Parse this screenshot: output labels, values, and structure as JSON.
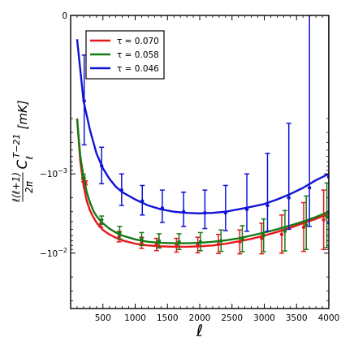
{
  "chart_data": {
    "type": "line",
    "title": "",
    "xlabel": "ℓ",
    "ylabel": "ℓ(ℓ+1)/2π C_ℓ^{T-21} [mK]",
    "ylabel_parts": {
      "frac_num": "ℓ(ℓ+1)",
      "frac_den": "2π",
      "symbol": "C",
      "sup": "T−21",
      "sub": "ℓ",
      "unit": "[mK]"
    },
    "x_scale": "linear",
    "y_scale": "symlog",
    "xlim": [
      0,
      4000
    ],
    "ylim": [
      -0.05,
      0
    ],
    "xticks": [
      500,
      1000,
      1500,
      2000,
      2500,
      3000,
      3500,
      4000
    ],
    "xtick_labels": [
      "500",
      "1000",
      "1500",
      "2000",
      "2500",
      "3000",
      "3500",
      "4000"
    ],
    "yticks": [
      0,
      -0.001,
      -0.01
    ],
    "ytick_labels": [
      "0",
      "−10^−3",
      "−10^−2"
    ],
    "grid": false,
    "legend_position": "top-left",
    "series": [
      {
        "name": "τ = 0.070",
        "color": "#e8161b",
        "x": [
          100,
          150,
          200,
          250,
          300,
          350,
          400,
          450,
          500,
          600,
          700,
          800,
          1000,
          1200,
          1400,
          1600,
          1800,
          2000,
          2200,
          2400,
          2600,
          2800,
          3000,
          3200,
          3400,
          3600,
          3800,
          4000
        ],
        "values": [
          -0.0002,
          -0.0007,
          -0.0014,
          -0.0022,
          -0.0029,
          -0.0035,
          -0.0041,
          -0.0046,
          -0.0051,
          -0.0058,
          -0.0064,
          -0.0069,
          -0.0076,
          -0.008,
          -0.0082,
          -0.0083,
          -0.0083,
          -0.0082,
          -0.008,
          -0.0076,
          -0.0071,
          -0.0066,
          -0.006,
          -0.0054,
          -0.0048,
          -0.0042,
          -0.0037,
          -0.0032
        ],
        "points": [
          {
            "x": 200,
            "y": -0.00119,
            "lo": -0.00126,
            "hi": -0.00113
          },
          {
            "x": 230,
            "y": -0.0013,
            "lo": -0.00138,
            "hi": -0.00122
          },
          {
            "x": 470,
            "y": -0.00424,
            "lo": -0.0047,
            "hi": -0.0038
          },
          {
            "x": 750,
            "y": -0.0062,
            "lo": -0.0072,
            "hi": -0.0053
          },
          {
            "x": 1100,
            "y": -0.0074,
            "lo": -0.0087,
            "hi": -0.0063
          },
          {
            "x": 1330,
            "y": -0.0078,
            "lo": -0.0093,
            "hi": -0.0065
          },
          {
            "x": 1640,
            "y": -0.008,
            "lo": -0.0097,
            "hi": -0.0065
          },
          {
            "x": 1970,
            "y": -0.0079,
            "lo": -0.0099,
            "hi": -0.0063
          },
          {
            "x": 2290,
            "y": -0.0077,
            "lo": -0.0101,
            "hi": -0.0058
          },
          {
            "x": 2620,
            "y": -0.0072,
            "lo": -0.0102,
            "hi": -0.0051
          },
          {
            "x": 2960,
            "y": -0.0065,
            "lo": -0.0102,
            "hi": -0.0042
          },
          {
            "x": 3270,
            "y": -0.0058,
            "lo": -0.01,
            "hi": -0.0033
          },
          {
            "x": 3610,
            "y": -0.0047,
            "lo": -0.0095,
            "hi": -0.0023
          },
          {
            "x": 3920,
            "y": -0.0038,
            "lo": -0.009,
            "hi": -0.0016
          }
        ]
      },
      {
        "name": "τ = 0.058",
        "color": "#157a16",
        "x": [
          100,
          150,
          200,
          250,
          300,
          350,
          400,
          450,
          500,
          600,
          700,
          800,
          1000,
          1200,
          1400,
          1600,
          1800,
          2000,
          2200,
          2400,
          2600,
          2800,
          3000,
          3200,
          3400,
          3600,
          3800,
          4000
        ],
        "values": [
          -0.0002,
          -0.0006,
          -0.0011,
          -0.0017,
          -0.0023,
          -0.0029,
          -0.0034,
          -0.0038,
          -0.0042,
          -0.0049,
          -0.0055,
          -0.006,
          -0.0067,
          -0.0072,
          -0.0074,
          -0.0075,
          -0.0075,
          -0.0074,
          -0.0072,
          -0.0069,
          -0.0065,
          -0.006,
          -0.0055,
          -0.005,
          -0.0045,
          -0.004,
          -0.0035,
          -0.003
        ],
        "points": [
          {
            "x": 200,
            "y": -0.00108,
            "lo": -0.00115,
            "hi": -0.00101
          },
          {
            "x": 480,
            "y": -0.0038,
            "lo": -0.0043,
            "hi": -0.0034
          },
          {
            "x": 760,
            "y": -0.0055,
            "lo": -0.0066,
            "hi": -0.0046
          },
          {
            "x": 1100,
            "y": -0.0066,
            "lo": -0.008,
            "hi": -0.0055
          },
          {
            "x": 1370,
            "y": -0.007,
            "lo": -0.0086,
            "hi": -0.0057
          },
          {
            "x": 1680,
            "y": -0.0072,
            "lo": -0.009,
            "hi": -0.0057
          },
          {
            "x": 2010,
            "y": -0.0072,
            "lo": -0.0093,
            "hi": -0.0055
          },
          {
            "x": 2330,
            "y": -0.007,
            "lo": -0.0095,
            "hi": -0.0051
          },
          {
            "x": 2660,
            "y": -0.0066,
            "lo": -0.0096,
            "hi": -0.0045
          },
          {
            "x": 2990,
            "y": -0.006,
            "lo": -0.0096,
            "hi": -0.0037
          },
          {
            "x": 3320,
            "y": -0.0053,
            "lo": -0.0094,
            "hi": -0.0029
          },
          {
            "x": 3650,
            "y": -0.0044,
            "lo": -0.009,
            "hi": -0.0019
          },
          {
            "x": 3970,
            "y": -0.0035,
            "lo": -0.0085,
            "hi": -0.0013
          }
        ]
      },
      {
        "name": "τ = 0.046",
        "color": "#1212d6",
        "x": [
          100,
          200,
          300,
          400,
          500,
          600,
          700,
          800,
          1000,
          1200,
          1400,
          1600,
          1800,
          2000,
          2200,
          2400,
          2600,
          2800,
          3000,
          3200,
          3400,
          3600,
          3800,
          4000
        ],
        "values": [
          -3e-05,
          -0.00012,
          -0.00028,
          -0.00055,
          -0.00085,
          -0.00115,
          -0.00145,
          -0.0017,
          -0.0021,
          -0.0025,
          -0.0028,
          -0.003,
          -0.0031,
          -0.00315,
          -0.0031,
          -0.003,
          -0.0028,
          -0.0026,
          -0.0024,
          -0.0021,
          -0.0018,
          -0.0015,
          -0.0012,
          -0.001
        ],
        "points": [
          {
            "x": 210,
            "y": -0.00012,
            "lo": -0.00043,
            "hi": -5e-05
          },
          {
            "x": 480,
            "y": -0.00079,
            "lo": -0.00133,
            "hi": -0.00046
          },
          {
            "x": 790,
            "y": -0.0016,
            "lo": -0.0025,
            "hi": -0.001
          },
          {
            "x": 1110,
            "y": -0.0022,
            "lo": -0.0033,
            "hi": -0.0014
          },
          {
            "x": 1420,
            "y": -0.0027,
            "lo": -0.0041,
            "hi": -0.0016
          },
          {
            "x": 1750,
            "y": -0.003,
            "lo": -0.0046,
            "hi": -0.0017
          },
          {
            "x": 2080,
            "y": -0.0031,
            "lo": -0.0049,
            "hi": -0.0016
          },
          {
            "x": 2400,
            "y": -0.0031,
            "lo": -0.0052,
            "hi": -0.0014
          },
          {
            "x": 2730,
            "y": -0.0028,
            "lo": -0.0053,
            "hi": -0.001
          },
          {
            "x": 3050,
            "y": -0.0025,
            "lo": -0.0053,
            "hi": -0.00055
          },
          {
            "x": 3380,
            "y": -0.002,
            "lo": -0.005,
            "hi": -0.00023
          },
          {
            "x": 3700,
            "y": -0.0015,
            "lo": -0.0046,
            "hi": 0
          },
          {
            "x": 4000,
            "y": -0.0011,
            "lo": -0.0042,
            "hi": 0
          }
        ]
      }
    ]
  }
}
